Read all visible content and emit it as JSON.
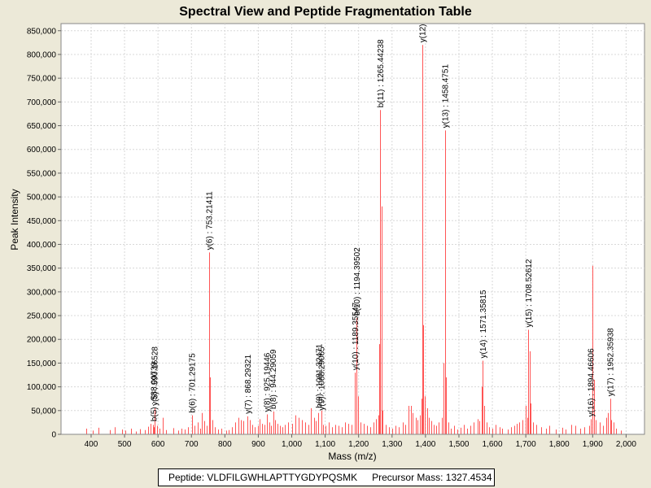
{
  "chart_data": {
    "type": "bar",
    "title": "Spectral View and Peptide Fragmentation Table",
    "xlabel": "Mass (m/z)",
    "ylabel": "Peak Intensity",
    "xlim": [
      310,
      2055
    ],
    "ylim": [
      0,
      865000
    ],
    "x_ticks": [
      400,
      500,
      600,
      700,
      800,
      900,
      1000,
      1100,
      1200,
      1300,
      1400,
      1500,
      1600,
      1700,
      1800,
      1900,
      2000
    ],
    "x_tick_labels": [
      "400",
      "500",
      "600",
      "700",
      "800",
      "900",
      "1,000",
      "1,100",
      "1,200",
      "1,300",
      "1,400",
      "1,500",
      "1,600",
      "1,700",
      "1,800",
      "1,900",
      "2,000"
    ],
    "y_ticks": [
      0,
      50000,
      100000,
      150000,
      200000,
      250000,
      300000,
      350000,
      400000,
      450000,
      500000,
      550000,
      600000,
      650000,
      700000,
      750000,
      800000,
      850000
    ],
    "y_tick_labels": [
      "0",
      "50,000",
      "100,000",
      "150,000",
      "200,000",
      "250,000",
      "300,000",
      "350,000",
      "400,000",
      "450,000",
      "500,000",
      "550,000",
      "600,000",
      "650,000",
      "700,000",
      "750,000",
      "800,000",
      "850,000"
    ],
    "grid": true,
    "series": [
      {
        "name": "peaks",
        "color": "#ff5555",
        "points": [
          [
            386,
            12000
          ],
          [
            405,
            8000
          ],
          [
            421,
            14000
          ],
          [
            455,
            9000
          ],
          [
            470,
            15000
          ],
          [
            492,
            10000
          ],
          [
            503,
            8000
          ],
          [
            520,
            12000
          ],
          [
            533,
            6000
          ],
          [
            545,
            11000
          ],
          [
            560,
            9000
          ],
          [
            570,
            16000
          ],
          [
            578,
            22000
          ],
          [
            584,
            20000
          ],
          [
            588,
            15000
          ],
          [
            590,
            55000
          ],
          [
            596,
            18000
          ],
          [
            604,
            12000
          ],
          [
            614,
            35000
          ],
          [
            625,
            9000
          ],
          [
            645,
            13000
          ],
          [
            660,
            8000
          ],
          [
            670,
            12000
          ],
          [
            680,
            10000
          ],
          [
            690,
            15000
          ],
          [
            701,
            40000
          ],
          [
            710,
            18000
          ],
          [
            718,
            25000
          ],
          [
            725,
            12000
          ],
          [
            732,
            45000
          ],
          [
            738,
            28000
          ],
          [
            745,
            18000
          ],
          [
            753,
            383000
          ],
          [
            756,
            120000
          ],
          [
            762,
            30000
          ],
          [
            770,
            15000
          ],
          [
            780,
            10000
          ],
          [
            790,
            12000
          ],
          [
            803,
            8000
          ],
          [
            812,
            9000
          ],
          [
            820,
            15000
          ],
          [
            830,
            25000
          ],
          [
            840,
            35000
          ],
          [
            848,
            30000
          ],
          [
            856,
            28000
          ],
          [
            868,
            38000
          ],
          [
            875,
            30000
          ],
          [
            882,
            20000
          ],
          [
            890,
            15000
          ],
          [
            898,
            18000
          ],
          [
            905,
            32000
          ],
          [
            912,
            22000
          ],
          [
            918,
            20000
          ],
          [
            925,
            42000
          ],
          [
            932,
            25000
          ],
          [
            938,
            18000
          ],
          [
            944,
            48000
          ],
          [
            950,
            30000
          ],
          [
            958,
            22000
          ],
          [
            965,
            18000
          ],
          [
            972,
            15000
          ],
          [
            980,
            20000
          ],
          [
            990,
            25000
          ],
          [
            1000,
            22000
          ],
          [
            1010,
            40000
          ],
          [
            1020,
            35000
          ],
          [
            1030,
            30000
          ],
          [
            1040,
            25000
          ],
          [
            1050,
            20000
          ],
          [
            1058,
            55000
          ],
          [
            1066,
            35000
          ],
          [
            1072,
            28000
          ],
          [
            1080,
            45000
          ],
          [
            1088,
            50000
          ],
          [
            1094,
            20000
          ],
          [
            1100,
            18000
          ],
          [
            1110,
            25000
          ],
          [
            1120,
            15000
          ],
          [
            1130,
            20000
          ],
          [
            1140,
            18000
          ],
          [
            1150,
            15000
          ],
          [
            1160,
            25000
          ],
          [
            1170,
            22000
          ],
          [
            1180,
            20000
          ],
          [
            1189,
            130000
          ],
          [
            1194,
            245000
          ],
          [
            1198,
            80000
          ],
          [
            1205,
            25000
          ],
          [
            1215,
            22000
          ],
          [
            1225,
            18000
          ],
          [
            1235,
            15000
          ],
          [
            1245,
            25000
          ],
          [
            1252,
            32000
          ],
          [
            1258,
            40000
          ],
          [
            1262,
            190000
          ],
          [
            1265,
            683000
          ],
          [
            1268,
            480000
          ],
          [
            1272,
            50000
          ],
          [
            1280,
            20000
          ],
          [
            1290,
            15000
          ],
          [
            1300,
            12000
          ],
          [
            1310,
            18000
          ],
          [
            1320,
            15000
          ],
          [
            1332,
            25000
          ],
          [
            1340,
            20000
          ],
          [
            1350,
            60000
          ],
          [
            1356,
            60000
          ],
          [
            1362,
            45000
          ],
          [
            1370,
            35000
          ],
          [
            1376,
            30000
          ],
          [
            1384,
            40000
          ],
          [
            1388,
            75000
          ],
          [
            1390,
            820000
          ],
          [
            1393,
            230000
          ],
          [
            1398,
            80000
          ],
          [
            1404,
            55000
          ],
          [
            1410,
            35000
          ],
          [
            1418,
            28000
          ],
          [
            1425,
            20000
          ],
          [
            1432,
            18000
          ],
          [
            1440,
            25000
          ],
          [
            1448,
            35000
          ],
          [
            1455,
            150000
          ],
          [
            1458,
            640000
          ],
          [
            1461,
            120000
          ],
          [
            1468,
            25000
          ],
          [
            1475,
            12000
          ],
          [
            1485,
            18000
          ],
          [
            1495,
            10000
          ],
          [
            1505,
            14000
          ],
          [
            1515,
            20000
          ],
          [
            1525,
            12000
          ],
          [
            1535,
            18000
          ],
          [
            1545,
            25000
          ],
          [
            1555,
            32000
          ],
          [
            1562,
            28000
          ],
          [
            1568,
            100000
          ],
          [
            1571,
            155000
          ],
          [
            1575,
            60000
          ],
          [
            1582,
            25000
          ],
          [
            1590,
            15000
          ],
          [
            1600,
            12000
          ],
          [
            1610,
            20000
          ],
          [
            1622,
            15000
          ],
          [
            1630,
            12000
          ],
          [
            1645,
            10000
          ],
          [
            1655,
            15000
          ],
          [
            1665,
            18000
          ],
          [
            1672,
            22000
          ],
          [
            1680,
            25000
          ],
          [
            1690,
            30000
          ],
          [
            1700,
            60000
          ],
          [
            1705,
            35000
          ],
          [
            1708,
            220000
          ],
          [
            1711,
            175000
          ],
          [
            1715,
            65000
          ],
          [
            1722,
            25000
          ],
          [
            1732,
            20000
          ],
          [
            1745,
            15000
          ],
          [
            1760,
            12000
          ],
          [
            1770,
            18000
          ],
          [
            1790,
            10000
          ],
          [
            1810,
            14000
          ],
          [
            1820,
            10000
          ],
          [
            1835,
            20000
          ],
          [
            1848,
            18000
          ],
          [
            1862,
            12000
          ],
          [
            1876,
            15000
          ],
          [
            1890,
            18000
          ],
          [
            1894,
            32000
          ],
          [
            1900,
            355000
          ],
          [
            1903,
            115000
          ],
          [
            1910,
            30000
          ],
          [
            1920,
            25000
          ],
          [
            1930,
            18000
          ],
          [
            1940,
            35000
          ],
          [
            1946,
            45000
          ],
          [
            1952,
            75000
          ],
          [
            1956,
            30000
          ],
          [
            1962,
            25000
          ],
          [
            1970,
            12000
          ],
          [
            1985,
            8000
          ]
        ]
      }
    ],
    "annotations": [
      {
        "x": 588.00739,
        "y": 22000,
        "text": "b(5) : 588.00739"
      },
      {
        "x": 590.16528,
        "y": 55000,
        "text": "y(5) : 590.16528"
      },
      {
        "x": 701.29175,
        "y": 40000,
        "text": "b(6) : 701.29175"
      },
      {
        "x": 753.21411,
        "y": 383000,
        "text": "y(6) : 753.21411"
      },
      {
        "x": 868.29321,
        "y": 38000,
        "text": "y(7) : 868.29321"
      },
      {
        "x": 925.19446,
        "y": 42000,
        "text": "y(8) : 925.19446"
      },
      {
        "x": 944.29059,
        "y": 48000,
        "text": "b(8) : 944.29059"
      },
      {
        "x": 1081.32471,
        "y": 50000,
        "text": "b(9) : 1081.32471"
      },
      {
        "x": 1088.29065,
        "y": 45000,
        "text": "y(9) : 1088.29065"
      },
      {
        "x": 1189.35547,
        "y": 130000,
        "text": "y(10) : 1189.35547"
      },
      {
        "x": 1194.39502,
        "y": 245000,
        "text": "b(10) : 1194.39502"
      },
      {
        "x": 1265.44238,
        "y": 683000,
        "text": "b(11) : 1265.44238"
      },
      {
        "x": 1390,
        "y": 820000,
        "text": "y(12)"
      },
      {
        "x": 1458.4751,
        "y": 640000,
        "text": "y(13) : 1458.4751"
      },
      {
        "x": 1571.35815,
        "y": 155000,
        "text": "y(14) : 1571.35815"
      },
      {
        "x": 1708.52612,
        "y": 220000,
        "text": "y(15) : 1708.52612"
      },
      {
        "x": 1894.46606,
        "y": 32000,
        "text": "y(16) : 1894.46606"
      },
      {
        "x": 1952.35938,
        "y": 75000,
        "text": "y(17) : 1952.35938"
      }
    ]
  },
  "footer": {
    "peptide": "Peptide: VLDFILGWHLAPTTYGDYPQSMK",
    "precursor": "Precursor Mass: 1327.4534"
  }
}
